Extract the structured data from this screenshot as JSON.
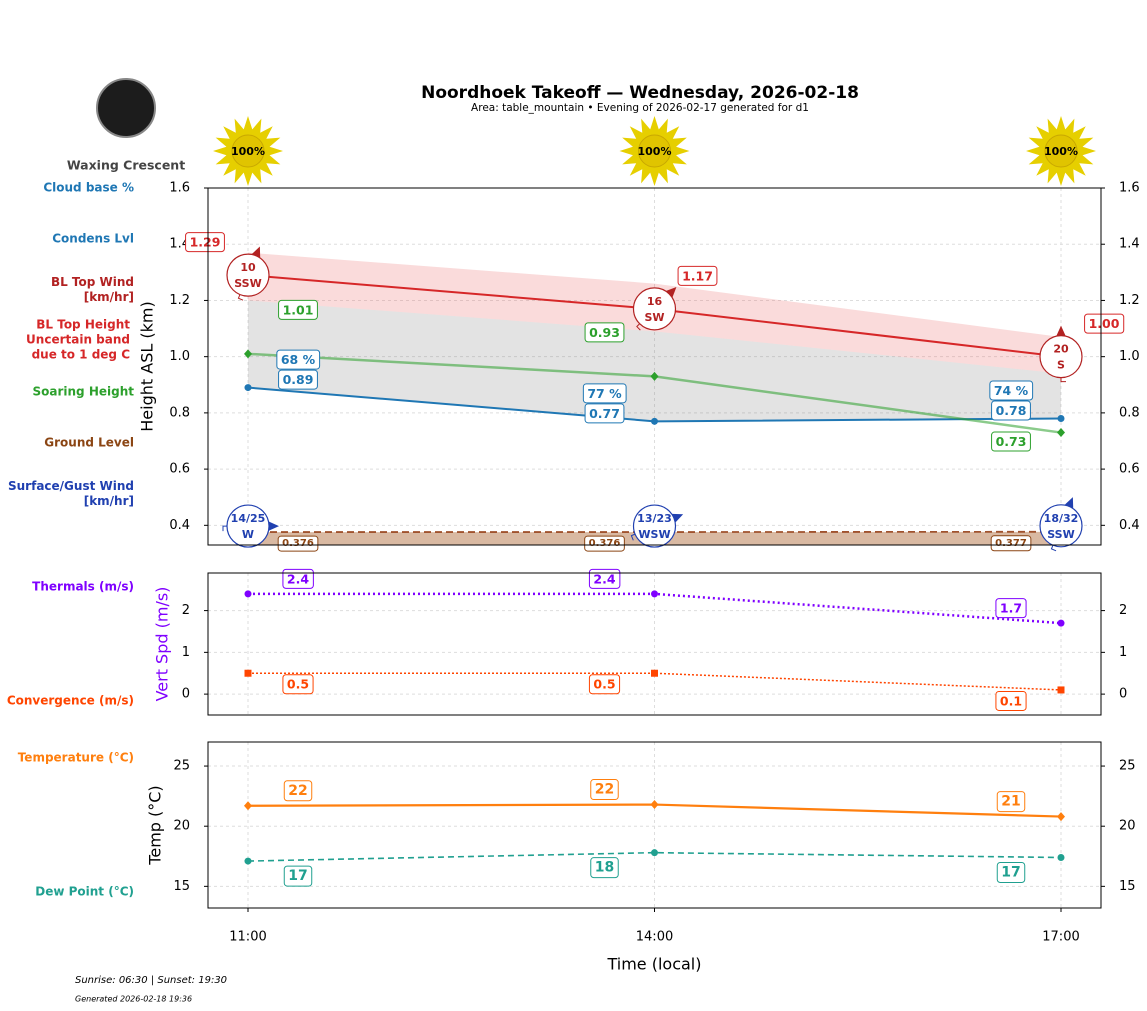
{
  "moon": {
    "phase": "Waxing Crescent"
  },
  "chart_data": [
    {
      "type": "line",
      "title": "Noordhoek Takeoff — Wednesday, 2026-02-18",
      "subtitle": "Area: table_mountain • Evening of 2026-02-17 generated for d1",
      "y_label": "Height ASL (km)",
      "ylim": [
        0.33,
        1.6
      ],
      "yticks": [
        0.4,
        0.6,
        0.8,
        {
          "value": 1,
          "label": "1.0"
        },
        1.2,
        1.4,
        1.6
      ],
      "grid": true,
      "sun": {
        "values": [
          100,
          100,
          100
        ],
        "value_labels": [
          "100%",
          "100%",
          "100%"
        ]
      },
      "series": [
        {
          "name": "Cloud base %",
          "color": "#1f77b4",
          "values": [
            68,
            77,
            74
          ],
          "value_labels": [
            "68 %",
            "77 %",
            "74 %"
          ]
        },
        {
          "name": "Condens Lvl",
          "color": "#1f77b4",
          "values": [
            0.89,
            0.77,
            0.78
          ]
        },
        {
          "name": "BL Top Wind\n[km/hr]",
          "color": "#b22222",
          "values": [
            10,
            16,
            20
          ],
          "directions": [
            "SSW",
            "SW",
            "S"
          ]
        },
        {
          "name": "BL Top Height\nUncertain band\ndue to 1 deg C",
          "color": "#d62728",
          "values": [
            1.29,
            1.17,
            1.0
          ],
          "value_labels": [
            "1.29",
            "1.17",
            "1.00"
          ],
          "band_upper": [
            1.37,
            1.26,
            1.07
          ],
          "band_lower": [
            1.2,
            1.09,
            0.94
          ]
        },
        {
          "name": "Soaring Height",
          "color": "#2ca02c",
          "values": [
            1.01,
            0.93,
            0.73
          ]
        },
        {
          "name": "Ground Level",
          "color": "#8b4513",
          "values": [
            0.376,
            0.376,
            0.377
          ]
        },
        {
          "name": "Surface/Gust Wind\n[km/hr]",
          "color": "#2040b0",
          "values": [
            14,
            13,
            18
          ],
          "gusts": [
            25,
            23,
            32
          ],
          "value_labels": [
            "14/25",
            "13/23",
            "18/32"
          ],
          "directions": [
            "W",
            "WSW",
            "SSW"
          ]
        }
      ]
    },
    {
      "type": "line",
      "y_label": "Vert Spd (m/s)",
      "ylim": [
        -0.5,
        2.9
      ],
      "yticks": [
        0,
        1,
        2
      ],
      "grid": true,
      "series": [
        {
          "name": "Thermals (m/s)",
          "color": "#7f00ff",
          "values": [
            2.4,
            2.4,
            1.7
          ]
        },
        {
          "name": "Convergence (m/s)",
          "color": "#ff4500",
          "values": [
            0.5,
            0.5,
            0.1
          ]
        }
      ]
    },
    {
      "type": "line",
      "y_label": "Temp (°C)",
      "x_label": "Time (local)",
      "categories": [
        "11:00",
        "14:00",
        "17:00"
      ],
      "ylim": [
        13.2,
        27
      ],
      "yticks": [
        15,
        20,
        25
      ],
      "grid": true,
      "series": [
        {
          "name": "Temperature (°C)",
          "color": "#ff7f0e",
          "values": [
            21.7,
            21.8,
            20.8
          ],
          "value_labels": [
            "22",
            "22",
            "21"
          ]
        },
        {
          "name": "Dew Point (°C)",
          "color": "#20a090",
          "values": [
            17.1,
            17.8,
            17.4
          ],
          "value_labels": [
            "17",
            "18",
            "17"
          ]
        }
      ]
    }
  ],
  "footer": {
    "sun_times": "Sunrise: 06:30 | Sunset: 19:30",
    "generated": "Generated 2026-02-18 19:36"
  }
}
